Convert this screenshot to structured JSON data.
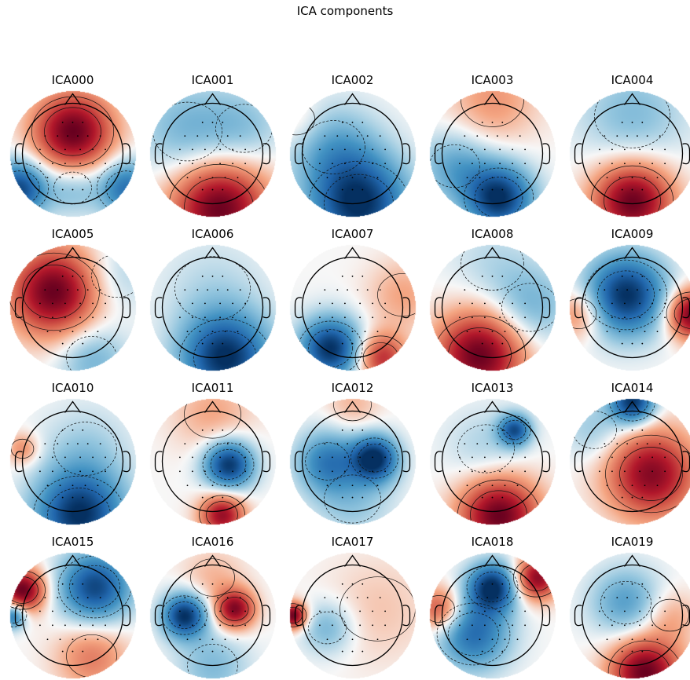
{
  "figure": {
    "title": "ICA components"
  },
  "chart_data": {
    "type": "heatmap",
    "title": "ICA components",
    "kind": "topomap",
    "colormap": "RdBu_r",
    "colors": {
      "positive": "#67001f",
      "mid": "#f7f7f7",
      "negative": "#053061"
    },
    "layout": {
      "rows": 4,
      "cols": 5
    },
    "components": [
      {
        "name": "ICA000",
        "blobs": [
          [
            0.0,
            0.35,
            1.0,
            0.45
          ],
          [
            -0.85,
            -0.55,
            -0.9,
            0.32
          ],
          [
            0.85,
            -0.55,
            -0.7,
            0.32
          ],
          [
            0.0,
            -0.55,
            -0.3,
            0.3
          ]
        ],
        "contours": 3
      },
      {
        "name": "ICA001",
        "blobs": [
          [
            0.1,
            -0.85,
            1.0,
            0.55
          ],
          [
            -0.4,
            0.35,
            -0.35,
            0.55
          ],
          [
            0.5,
            0.4,
            -0.25,
            0.45
          ]
        ],
        "contours": 3
      },
      {
        "name": "ICA002",
        "blobs": [
          [
            0.1,
            -0.8,
            -1.0,
            0.55
          ],
          [
            -0.3,
            0.1,
            -0.35,
            0.5
          ],
          [
            -0.9,
            0.55,
            0.15,
            0.3
          ]
        ],
        "contours": 3
      },
      {
        "name": "ICA003",
        "blobs": [
          [
            0.1,
            -0.7,
            -1.0,
            0.38
          ],
          [
            -0.6,
            -0.2,
            -0.4,
            0.4
          ],
          [
            0.0,
            0.85,
            0.3,
            0.5
          ]
        ],
        "contours": 3
      },
      {
        "name": "ICA004",
        "blobs": [
          [
            0.0,
            -0.75,
            1.0,
            0.45
          ],
          [
            0.0,
            0.6,
            -0.3,
            0.6
          ]
        ],
        "contours": 3
      },
      {
        "name": "ICA005",
        "blobs": [
          [
            -0.3,
            0.25,
            1.0,
            0.5
          ],
          [
            0.3,
            -0.8,
            -0.35,
            0.4
          ],
          [
            0.7,
            0.5,
            -0.2,
            0.4
          ]
        ],
        "contours": 3
      },
      {
        "name": "ICA006",
        "blobs": [
          [
            0.2,
            -0.8,
            -1.0,
            0.5
          ],
          [
            0.0,
            0.3,
            -0.15,
            0.6
          ]
        ],
        "contours": 3
      },
      {
        "name": "ICA007",
        "blobs": [
          [
            -0.35,
            -0.65,
            -1.0,
            0.35
          ],
          [
            0.45,
            -0.8,
            0.7,
            0.28
          ],
          [
            0.8,
            0.2,
            0.25,
            0.4
          ]
        ],
        "contours": 3
      },
      {
        "name": "ICA008",
        "blobs": [
          [
            -0.2,
            -0.75,
            1.0,
            0.5
          ],
          [
            0.6,
            0.0,
            -0.35,
            0.45
          ],
          [
            0.0,
            0.7,
            -0.15,
            0.5
          ]
        ],
        "contours": 3
      },
      {
        "name": "ICA009",
        "blobs": [
          [
            -0.1,
            0.2,
            -1.0,
            0.45
          ],
          [
            0.95,
            -0.1,
            1.0,
            0.28
          ],
          [
            -0.85,
            -0.1,
            0.4,
            0.28
          ]
        ],
        "contours": 3
      },
      {
        "name": "ICA010",
        "blobs": [
          [
            0.1,
            -0.85,
            -1.0,
            0.5
          ],
          [
            -0.8,
            0.2,
            0.35,
            0.18
          ],
          [
            0.2,
            0.2,
            -0.2,
            0.5
          ]
        ],
        "contours": 3
      },
      {
        "name": "ICA011",
        "blobs": [
          [
            0.25,
            -0.05,
            -1.0,
            0.28
          ],
          [
            0.15,
            -0.85,
            0.85,
            0.25
          ],
          [
            0.0,
            0.75,
            0.25,
            0.45
          ]
        ],
        "contours": 3
      },
      {
        "name": "ICA012",
        "blobs": [
          [
            0.35,
            0.05,
            -1.0,
            0.26
          ],
          [
            -0.4,
            0.0,
            -0.6,
            0.35
          ],
          [
            0.0,
            -0.6,
            -0.25,
            0.45
          ],
          [
            0.0,
            0.9,
            0.2,
            0.3
          ]
        ],
        "contours": 4
      },
      {
        "name": "ICA013",
        "blobs": [
          [
            0.1,
            -0.85,
            1.0,
            0.45
          ],
          [
            0.35,
            0.5,
            -0.8,
            0.18
          ],
          [
            -0.1,
            0.2,
            -0.2,
            0.45
          ]
        ],
        "contours": 3
      },
      {
        "name": "ICA014",
        "blobs": [
          [
            0.3,
            -0.2,
            0.9,
            0.5
          ],
          [
            0.0,
            0.95,
            -1.0,
            0.25
          ],
          [
            -0.6,
            0.5,
            -0.25,
            0.35
          ]
        ],
        "contours": 3
      },
      {
        "name": "ICA015",
        "blobs": [
          [
            -0.8,
            0.4,
            1.0,
            0.25
          ],
          [
            0.35,
            0.45,
            -0.9,
            0.4
          ],
          [
            -0.95,
            0.0,
            -0.75,
            0.15
          ],
          [
            0.3,
            -0.65,
            0.4,
            0.4
          ]
        ],
        "contours": 3
      },
      {
        "name": "ICA016",
        "blobs": [
          [
            -0.45,
            0.0,
            -1.0,
            0.25
          ],
          [
            0.35,
            0.1,
            0.9,
            0.22
          ],
          [
            0.0,
            -0.8,
            -0.3,
            0.4
          ],
          [
            0.0,
            0.6,
            0.2,
            0.35
          ]
        ],
        "contours": 3
      },
      {
        "name": "ICA017",
        "blobs": [
          [
            -0.95,
            0.0,
            1.0,
            0.15
          ],
          [
            -0.4,
            -0.2,
            -0.35,
            0.3
          ],
          [
            0.4,
            0.1,
            0.15,
            0.6
          ]
        ],
        "contours": 3
      },
      {
        "name": "ICA018",
        "blobs": [
          [
            0.0,
            0.45,
            -1.0,
            0.28
          ],
          [
            -0.3,
            -0.3,
            -0.7,
            0.4
          ],
          [
            0.7,
            0.6,
            0.9,
            0.25
          ],
          [
            -0.85,
            0.1,
            0.6,
            0.25
          ]
        ],
        "contours": 3
      },
      {
        "name": "ICA019",
        "blobs": [
          [
            0.2,
            -0.9,
            1.0,
            0.4
          ],
          [
            -0.1,
            0.2,
            -0.45,
            0.4
          ],
          [
            0.6,
            0.0,
            0.25,
            0.3
          ]
        ],
        "contours": 3
      }
    ]
  }
}
